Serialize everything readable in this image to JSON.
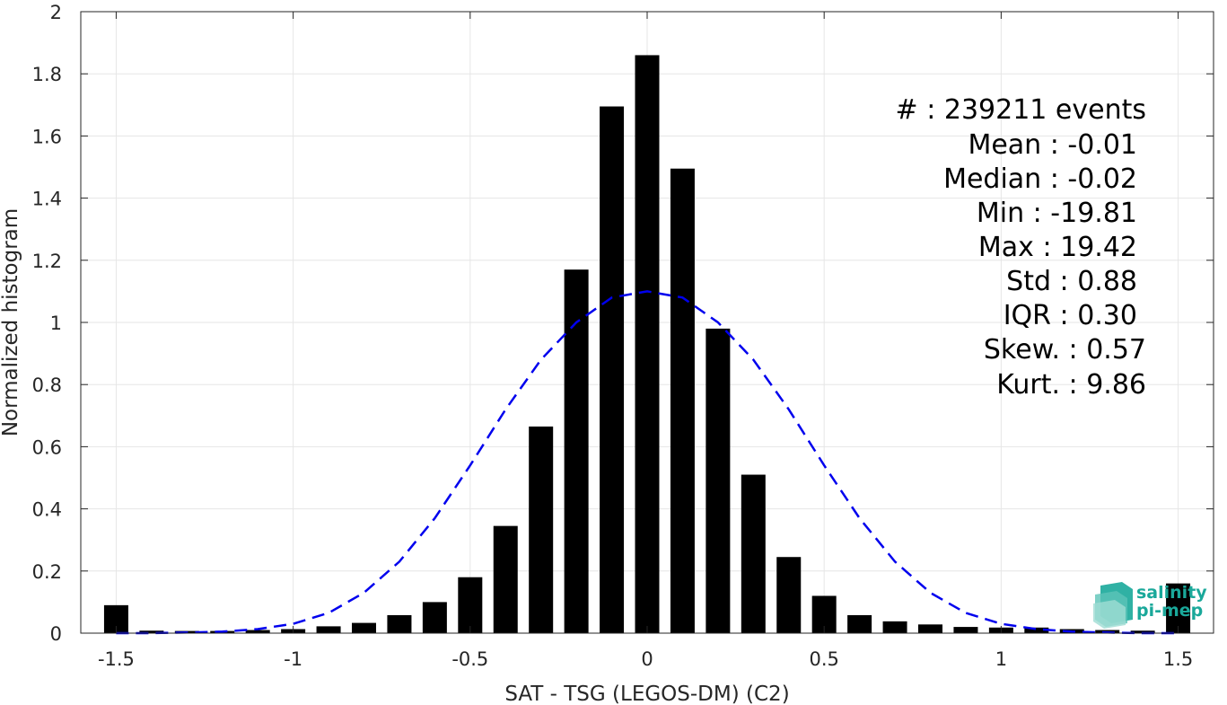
{
  "chart_data": {
    "type": "bar",
    "xlabel": "SAT - TSG (LEGOS-DM) (C2)",
    "ylabel": "Normalized histogram",
    "xlim": [
      -1.6,
      1.6
    ],
    "ylim": [
      0,
      2
    ],
    "grid": true,
    "x_ticks": [
      "-1.5",
      "-1",
      "-0.5",
      "0",
      "0.5",
      "1",
      "1.5"
    ],
    "x_tick_values": [
      -1.5,
      -1,
      -0.5,
      0,
      0.5,
      1,
      1.5
    ],
    "y_ticks": [
      "0",
      "0.2",
      "0.4",
      "0.6",
      "0.8",
      "1",
      "1.2",
      "1.4",
      "1.6",
      "1.8",
      "2"
    ],
    "y_tick_values": [
      0,
      0.2,
      0.4,
      0.6,
      0.8,
      1,
      1.2,
      1.4,
      1.6,
      1.8,
      2
    ],
    "bar_color": "#000000",
    "curve_color": "#0000ee",
    "series": [
      {
        "type": "bar",
        "x": [
          -1.5,
          -1.4,
          -1.3,
          -1.2,
          -1.1,
          -1.0,
          -0.9,
          -0.8,
          -0.7,
          -0.6,
          -0.5,
          -0.4,
          -0.3,
          -0.2,
          -0.1,
          0.0,
          0.1,
          0.2,
          0.3,
          0.4,
          0.5,
          0.6,
          0.7,
          0.8,
          0.9,
          1.0,
          1.1,
          1.2,
          1.3,
          1.4,
          1.5
        ],
        "values": [
          0.09,
          0.008,
          0.007,
          0.007,
          0.01,
          0.013,
          0.022,
          0.033,
          0.058,
          0.1,
          0.18,
          0.345,
          0.665,
          1.17,
          1.695,
          1.86,
          1.495,
          0.98,
          0.51,
          0.245,
          0.12,
          0.058,
          0.038,
          0.028,
          0.02,
          0.018,
          0.018,
          0.013,
          0.01,
          0.008,
          0.16
        ]
      },
      {
        "type": "line",
        "style": "dashed",
        "x": [
          -1.5,
          -1.4,
          -1.3,
          -1.2,
          -1.1,
          -1.0,
          -0.9,
          -0.8,
          -0.7,
          -0.6,
          -0.5,
          -0.4,
          -0.3,
          -0.2,
          -0.1,
          0.0,
          0.1,
          0.2,
          0.3,
          0.4,
          0.5,
          0.6,
          0.7,
          0.8,
          0.9,
          1.0,
          1.1,
          1.2,
          1.3,
          1.4,
          1.5
        ],
        "values": [
          0.0,
          0.0,
          0.002,
          0.005,
          0.013,
          0.03,
          0.065,
          0.13,
          0.23,
          0.37,
          0.54,
          0.72,
          0.88,
          1.0,
          1.08,
          1.1,
          1.08,
          1.0,
          0.88,
          0.72,
          0.54,
          0.37,
          0.23,
          0.13,
          0.065,
          0.03,
          0.013,
          0.005,
          0.002,
          0.0,
          0.0
        ]
      }
    ],
    "stats": [
      "#  : 239211 events",
      "Mean : -0.01",
      "Median : -0.02",
      "Min : -19.81",
      "Max : 19.42",
      "Std : 0.88",
      "IQR : 0.30",
      "Skew. : 0.57",
      "Kurt. : 9.86"
    ]
  },
  "logo": {
    "line1": "salinity",
    "line2": "pi-mep",
    "color": "#1aa89a"
  }
}
